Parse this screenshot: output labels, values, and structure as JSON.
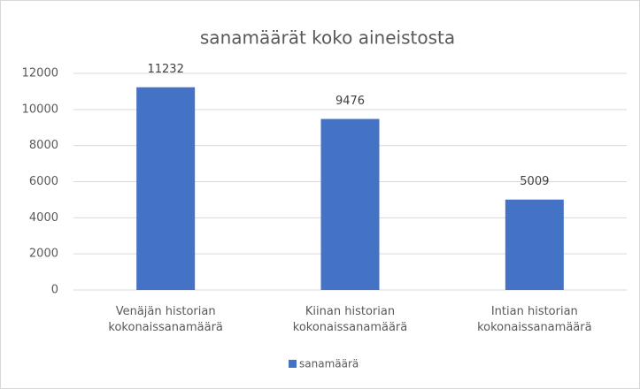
{
  "chart_data": {
    "type": "bar",
    "title": "sanamäärät koko aineistosta",
    "categories": [
      "Venäjän historian kokonaissanamäärä",
      "Kiinan historian kokonaissanamäärä",
      "Intian historian kokonaissanamäärä"
    ],
    "series": [
      {
        "name": "sanamäärä",
        "color": "#4472c4",
        "values": [
          11232,
          9476,
          5009
        ]
      }
    ],
    "ylim": [
      0,
      12000
    ],
    "yticks": [
      0,
      2000,
      4000,
      6000,
      8000,
      10000,
      12000
    ],
    "grid": true,
    "legend": "bottom"
  }
}
